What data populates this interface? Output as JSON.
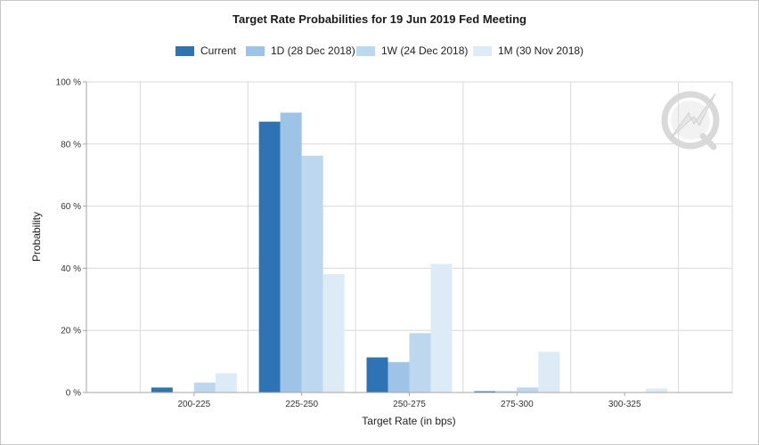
{
  "chart_data": {
    "type": "bar",
    "title": "Target Rate Probabilities for 19 Jun 2019 Fed Meeting",
    "xlabel": "Target Rate (in bps)",
    "ylabel": "Probability",
    "categories": [
      "200-225",
      "225-250",
      "250-275",
      "275-300",
      "300-325"
    ],
    "y_ticks": [
      "0 %",
      "20 %",
      "40 %",
      "60 %",
      "80 %",
      "100 %"
    ],
    "ylim": [
      0,
      100
    ],
    "grid": true,
    "legend_position": "top",
    "series": [
      {
        "name": "Current",
        "color": "#2e74b5",
        "values": [
          1.6,
          87.2,
          11.3,
          0.4,
          0.0
        ]
      },
      {
        "name": "1D (28 Dec 2018)",
        "color": "#9dc3e6",
        "values": [
          0.0,
          90.1,
          9.8,
          0.4,
          0.0
        ]
      },
      {
        "name": "1W (24 Dec 2018)",
        "color": "#bdd7ee",
        "values": [
          3.2,
          76.2,
          19.1,
          1.6,
          0.0
        ]
      },
      {
        "name": "1M (30 Nov 2018)",
        "color": "#ddebf7",
        "values": [
          6.2,
          38.1,
          41.4,
          13.1,
          1.3
        ]
      }
    ]
  }
}
